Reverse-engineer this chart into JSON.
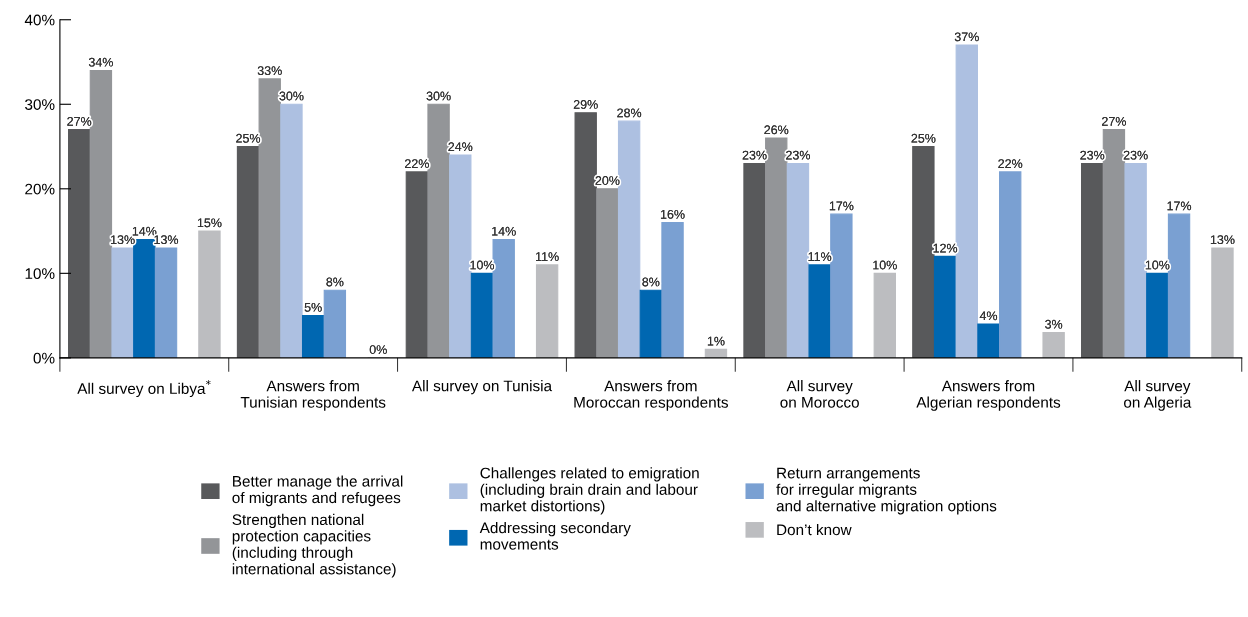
{
  "chart_data": {
    "type": "bar",
    "categories": [
      "All survey on Libya$^{*}$",
      "Answers from\nTunisian respondents",
      "All survey on Tunisia",
      "Answers from\nMoroccan respondents",
      "All survey\non Morocco",
      "Answers from\nAlgerian respondents",
      "All survey\non Algeria"
    ],
    "series": [
      {
        "name": "Better manage the arrival\nof migrants and refugees",
        "color": "#58595b",
        "values": [
          27,
          25,
          22,
          29,
          23,
          25,
          23
        ],
        "value_labels": [
          "27%",
          "25%",
          "22%",
          "29%",
          "23%",
          "25%",
          "23%"
        ]
      },
      {
        "name": "Strengthen national\nprotection capacities\n(including through\ninternational assistance)",
        "color": "#939598",
        "colors": [
          "#939598",
          "#939598",
          "#939598",
          "#939598",
          "#939598",
          "#0067b1",
          "#939598"
        ],
        "values": [
          34,
          33,
          30,
          20,
          26,
          12,
          27
        ],
        "value_labels": [
          "34%",
          "33%",
          "30%",
          "20%",
          "26%",
          "12%",
          "27%"
        ]
      },
      {
        "name": "Challenges related to emigration\n(including brain drain and labour\nmarket distortions)",
        "color": "#adc0e1",
        "values": [
          13,
          30,
          24,
          28,
          23,
          37,
          23
        ],
        "value_labels": [
          "13%",
          "30%",
          "24%",
          "28%",
          "23%",
          "37%",
          "23%"
        ]
      },
      {
        "name": "Addressing secondary\nmovements",
        "color": "#0067b1",
        "values": [
          14,
          5,
          10,
          8,
          11,
          4,
          10
        ],
        "value_labels": [
          "14%",
          "5%",
          "10%",
          "8%",
          "11%",
          "4%",
          "10%"
        ]
      },
      {
        "name": "Return arrangements\nfor irregular migrants\nand alternative migration options",
        "color": "#7aa0d2",
        "values": [
          13,
          8,
          14,
          16,
          17,
          22,
          17
        ],
        "value_labels": [
          "13%",
          "8%",
          "14%",
          "16%",
          "17%",
          "22%",
          "17%"
        ]
      },
      {
        "name": "Don’t know",
        "color": "#bcbdc0",
        "values": [
          15,
          0,
          11,
          1,
          10,
          3,
          13
        ],
        "value_labels": [
          "15%",
          "0%",
          "11%",
          "1%",
          "10%",
          "3%",
          "13%"
        ]
      }
    ],
    "ylim": [
      0,
      40
    ],
    "yticks": [
      {
        "value": 0,
        "label": "0%"
      },
      {
        "value": 10,
        "label": "10%"
      },
      {
        "value": 20,
        "label": "20%"
      },
      {
        "value": 30,
        "label": "30%"
      },
      {
        "value": 40,
        "label": "40%"
      }
    ],
    "grid": false,
    "legend": "bottom"
  }
}
